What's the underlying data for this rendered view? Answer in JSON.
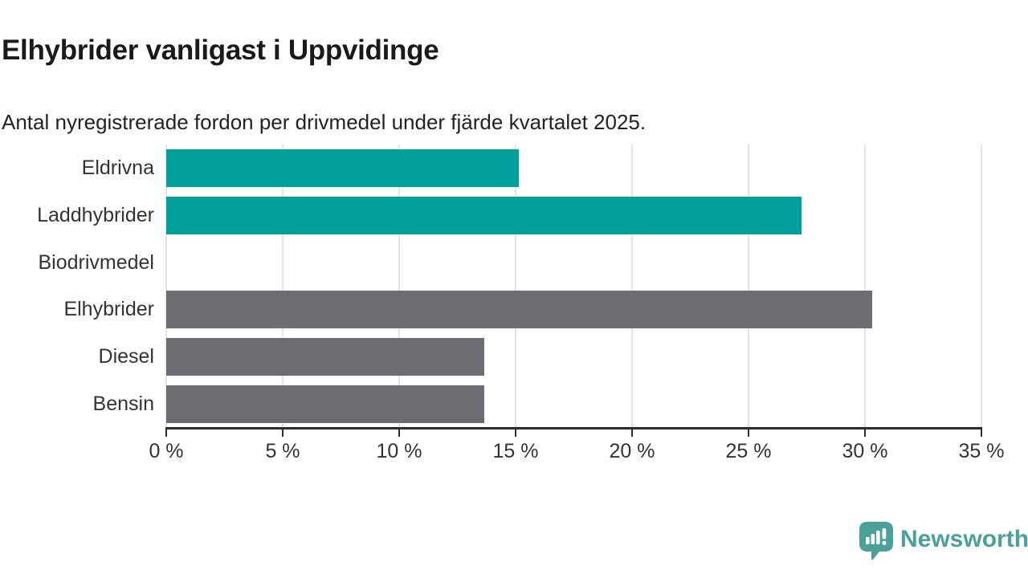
{
  "header": {
    "title": "Elhybrider vanligast i Uppvidinge",
    "subtitle": "Antal nyregistrerade fordon per drivmedel under fjärde kvartalet 2025."
  },
  "chart_data": {
    "type": "bar",
    "orientation": "horizontal",
    "title": "Elhybrider vanligast i Uppvidinge",
    "subtitle": "Antal nyregistrerade fordon per drivmedel under fjärde kvartalet 2025.",
    "categories": [
      "Eldrivna",
      "Laddhybrider",
      "Biodrivmedel",
      "Elhybrider",
      "Diesel",
      "Bensin"
    ],
    "values": [
      15.15,
      27.27,
      0,
      30.3,
      13.64,
      13.64
    ],
    "bar_colors": [
      "#00a09a",
      "#00a09a",
      "#00a09a",
      "#6c6c71",
      "#6c6c71",
      "#6c6c71"
    ],
    "unit": "%",
    "xlim": [
      0,
      35
    ],
    "x_ticks": [
      0,
      5,
      10,
      15,
      20,
      25,
      30,
      35
    ],
    "x_tick_labels": [
      "0 %",
      "5 %",
      "10 %",
      "15 %",
      "20 %",
      "25 %",
      "30 %",
      "35 %"
    ],
    "grid": true,
    "legend": false
  },
  "colors": {
    "teal": "#00a09a",
    "gray": "#6c6c71",
    "gridline": "#e3e3e3",
    "axis": "#2d2d2d",
    "label_text": "#333333",
    "logo_teal": "#4ba09a"
  },
  "footer": {
    "brand": "Newsworthy",
    "logo_icon": "speech-bubble-bar-chart-exclamation"
  }
}
